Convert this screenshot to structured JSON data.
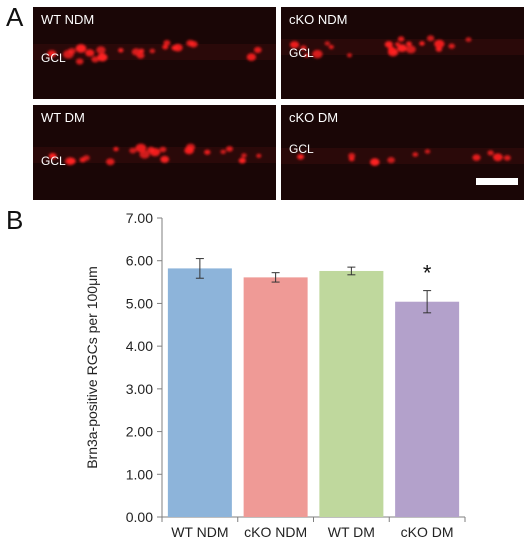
{
  "figure": {
    "panel_a_label": "A",
    "panel_b_label": "B"
  },
  "micrographs": {
    "tissue_color": "#1a0606",
    "cell_color": "#ff2020",
    "border_color": "#ffffff",
    "tiles": [
      {
        "label": "WT NDM",
        "region": "GCL"
      },
      {
        "label": "cKO NDM",
        "region": "GCL"
      },
      {
        "label": "WT DM",
        "region": "GCL"
      },
      {
        "label": "cKO DM",
        "region": "GCL"
      }
    ]
  },
  "chart_data": {
    "type": "bar",
    "categories": [
      "WT NDM",
      "cKO NDM",
      "WT DM",
      "cKO DM"
    ],
    "values": [
      5.82,
      5.61,
      5.76,
      5.04
    ],
    "errors": [
      0.23,
      0.11,
      0.09,
      0.26
    ],
    "colors": [
      "#8db4da",
      "#ef9a96",
      "#bfd89d",
      "#b3a1cb"
    ],
    "significance": [
      "",
      "",
      "",
      "*"
    ],
    "ylabel": "Brn3a-positive RGCs per 100μm",
    "xlabel": "",
    "ylim": [
      0,
      7
    ],
    "yticks": [
      "0.00",
      "1.00",
      "2.00",
      "3.00",
      "4.00",
      "5.00",
      "6.00",
      "7.00"
    ],
    "grid": false
  }
}
